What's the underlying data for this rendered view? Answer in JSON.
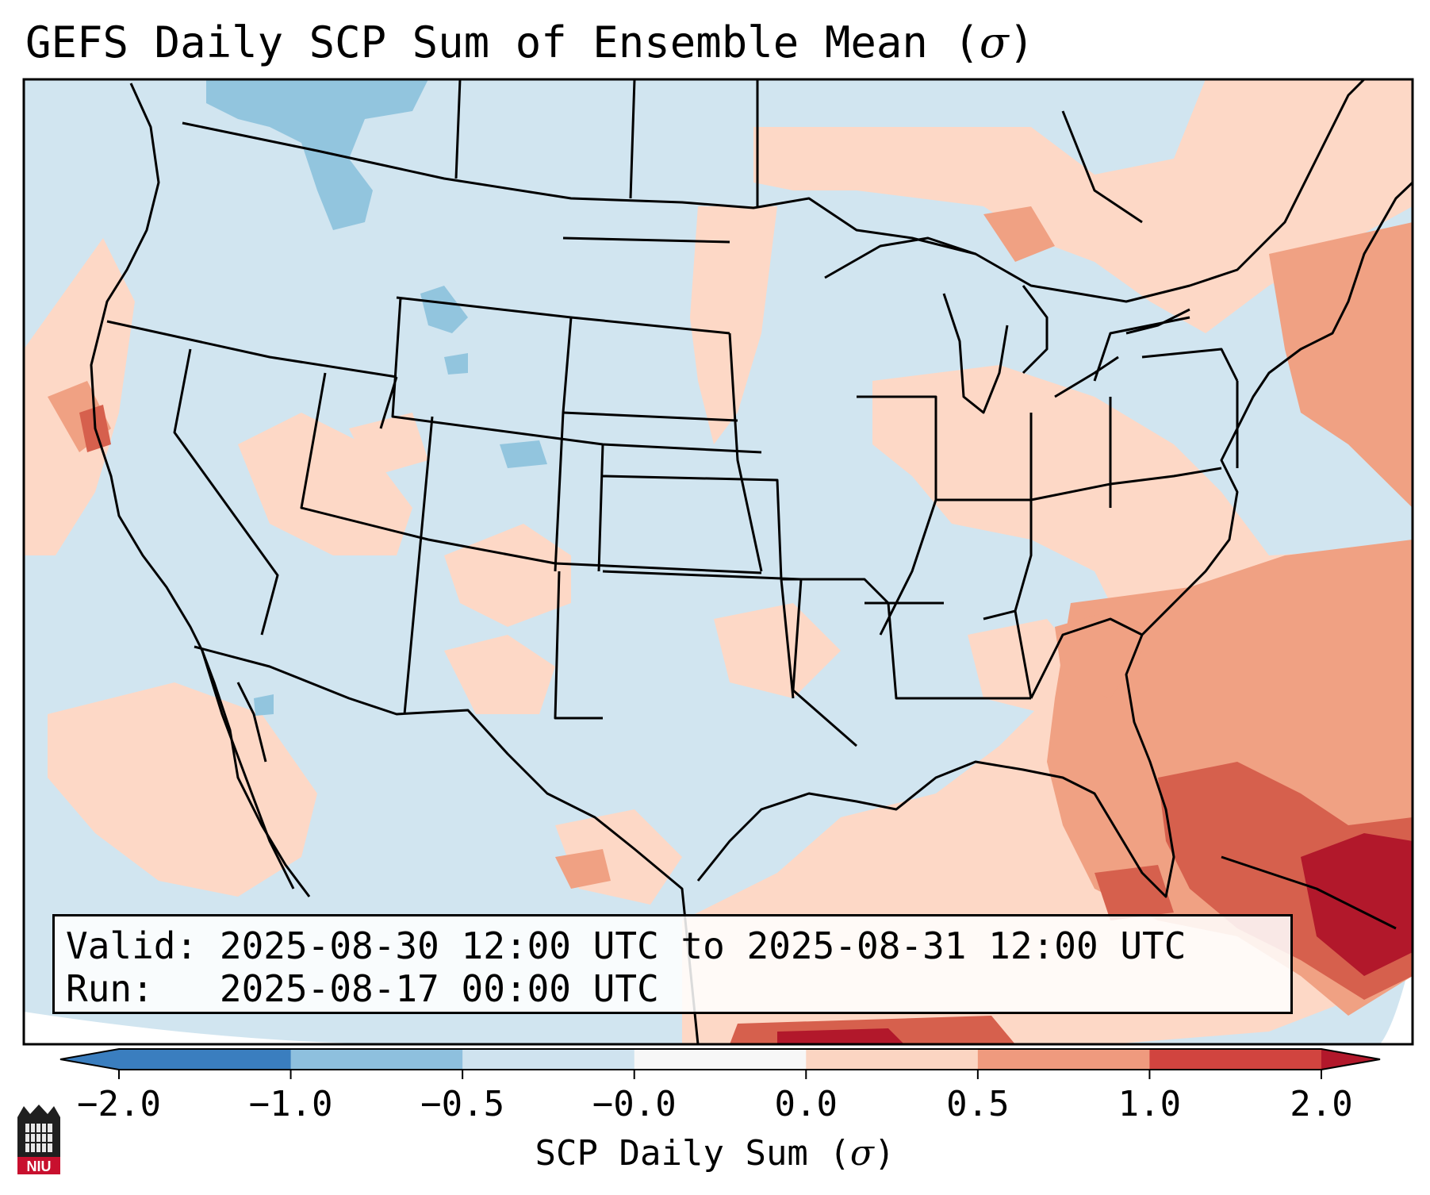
{
  "title": {
    "text": "GEFS Daily SCP Sum of Ensemble Mean (",
    "symbol": "σ",
    "close": ")"
  },
  "info_box": {
    "valid_label": "Valid:",
    "valid_value": "2025-08-30 12:00 UTC to 2025-08-31 12:00 UTC",
    "run_label": "Run:",
    "run_value": "2025-08-17 00:00 UTC"
  },
  "colorbar": {
    "ticks": [
      "−2.0",
      "−1.0",
      "−0.5",
      "−0.0",
      "0.0",
      "0.5",
      "1.0",
      "2.0"
    ],
    "label_text": "SCP Daily Sum (",
    "label_symbol": "σ",
    "label_close": ")",
    "colors": [
      "#3a7ebf",
      "#8ec0de",
      "#cfe3ef",
      "#f7f7f7",
      "#fbd5c2",
      "#ef9a7e",
      "#d1443f",
      "#b2182b"
    ]
  },
  "logo": {
    "text": "NIU",
    "icon": "niu-huskie-tower-icon"
  },
  "map_colors": {
    "neutral_blue": "#d1e5f0",
    "pale_red": "#fdd8c6",
    "mid_red": "#f0a183",
    "strong_red": "#d6604d",
    "dark_red": "#b2182b",
    "light_blue": "#92c5de"
  }
}
